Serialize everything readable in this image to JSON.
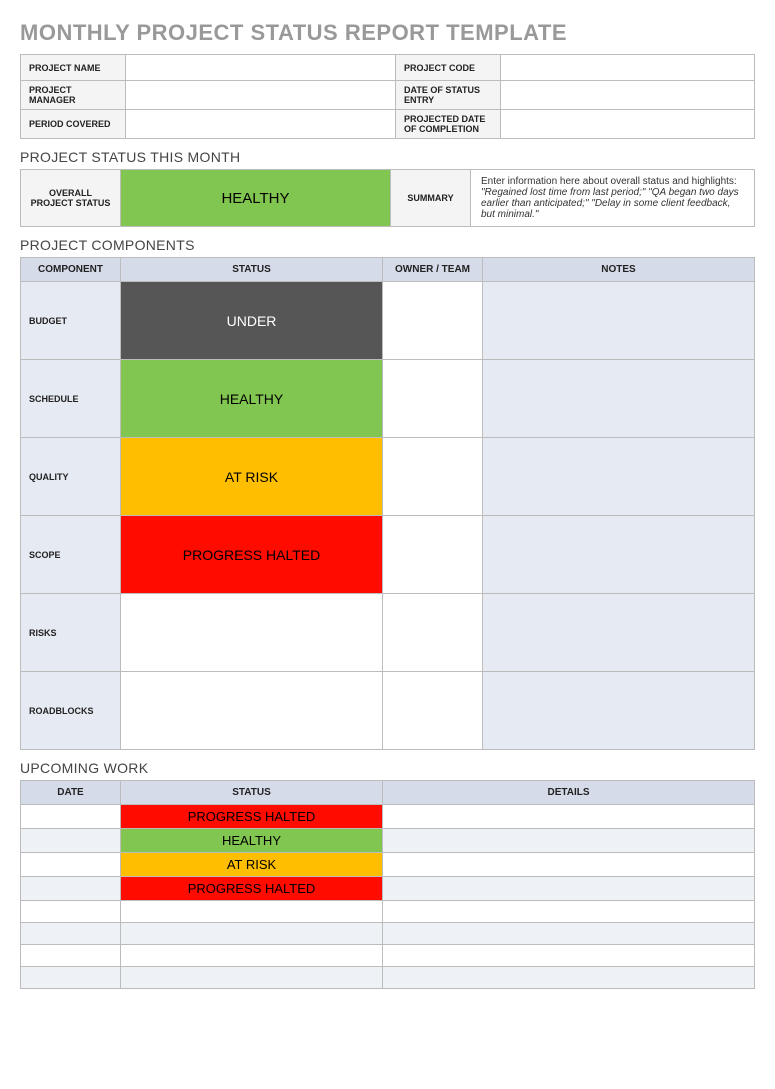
{
  "title": "MONTHLY PROJECT STATUS REPORT TEMPLATE",
  "colors": {
    "healthy": "#80c651",
    "under": "#565656",
    "under_text": "#ffffff",
    "at_risk": "#ffbe00",
    "halted": "#ff0b00",
    "header_cell": "#d5dbe8",
    "alt_row": "#e6eaf2",
    "label_bg": "#f4f4f4"
  },
  "info": {
    "labels": {
      "project_name": "PROJECT NAME",
      "project_code": "PROJECT CODE",
      "project_manager": "PROJECT MANAGER",
      "date_of_status_entry": "DATE OF STATUS ENTRY",
      "period_covered": "PERIOD COVERED",
      "projected_date_of_completion": "PROJECTED DATE OF COMPLETION"
    },
    "values": {
      "project_name": "",
      "project_code": "",
      "project_manager": "",
      "date_of_status_entry": "",
      "period_covered": "",
      "projected_date_of_completion": ""
    }
  },
  "status_this_month": {
    "heading": "PROJECT STATUS THIS MONTH",
    "overall_label": "OVERALL PROJECT STATUS",
    "overall_status": "HEALTHY",
    "overall_status_bg": "#80c651",
    "overall_status_color": "#000000",
    "summary_label": "SUMMARY",
    "summary_lead": "Enter information here about overall status and highlights: ",
    "summary_italic": "\"Regained lost time from last period;\" \"QA began two days earlier than anticipated;\" \"Delay in some client feedback, but minimal.\""
  },
  "components": {
    "heading": "PROJECT COMPONENTS",
    "columns": [
      "COMPONENT",
      "STATUS",
      "OWNER / TEAM",
      "NOTES"
    ],
    "rows": [
      {
        "label": "BUDGET",
        "status": "UNDER",
        "bg": "#565656",
        "fg": "#ffffff",
        "owner": "",
        "notes": ""
      },
      {
        "label": "SCHEDULE",
        "status": "HEALTHY",
        "bg": "#80c651",
        "fg": "#000000",
        "owner": "",
        "notes": ""
      },
      {
        "label": "QUALITY",
        "status": "AT RISK",
        "bg": "#ffbe00",
        "fg": "#000000",
        "owner": "",
        "notes": ""
      },
      {
        "label": "SCOPE",
        "status": "PROGRESS HALTED",
        "bg": "#ff0b00",
        "fg": "#000000",
        "owner": "",
        "notes": ""
      },
      {
        "label": "RISKS",
        "status": "",
        "bg": "#ffffff",
        "fg": "#000000",
        "owner": "",
        "notes": ""
      },
      {
        "label": "ROADBLOCKS",
        "status": "",
        "bg": "#ffffff",
        "fg": "#000000",
        "owner": "",
        "notes": ""
      }
    ]
  },
  "upcoming": {
    "heading": "UPCOMING WORK",
    "columns": [
      "DATE",
      "STATUS",
      "DETAILS"
    ],
    "rows": [
      {
        "date": "",
        "status": "PROGRESS HALTED",
        "bg": "#ff0b00",
        "fg": "#000000",
        "details": ""
      },
      {
        "date": "",
        "status": "HEALTHY",
        "bg": "#80c651",
        "fg": "#000000",
        "details": ""
      },
      {
        "date": "",
        "status": "AT RISK",
        "bg": "#ffbe00",
        "fg": "#000000",
        "details": ""
      },
      {
        "date": "",
        "status": "PROGRESS HALTED",
        "bg": "#ff0b00",
        "fg": "#000000",
        "details": ""
      },
      {
        "date": "",
        "status": "",
        "bg": "",
        "fg": "",
        "details": ""
      },
      {
        "date": "",
        "status": "",
        "bg": "",
        "fg": "",
        "details": ""
      },
      {
        "date": "",
        "status": "",
        "bg": "",
        "fg": "",
        "details": ""
      },
      {
        "date": "",
        "status": "",
        "bg": "",
        "fg": "",
        "details": ""
      }
    ]
  }
}
